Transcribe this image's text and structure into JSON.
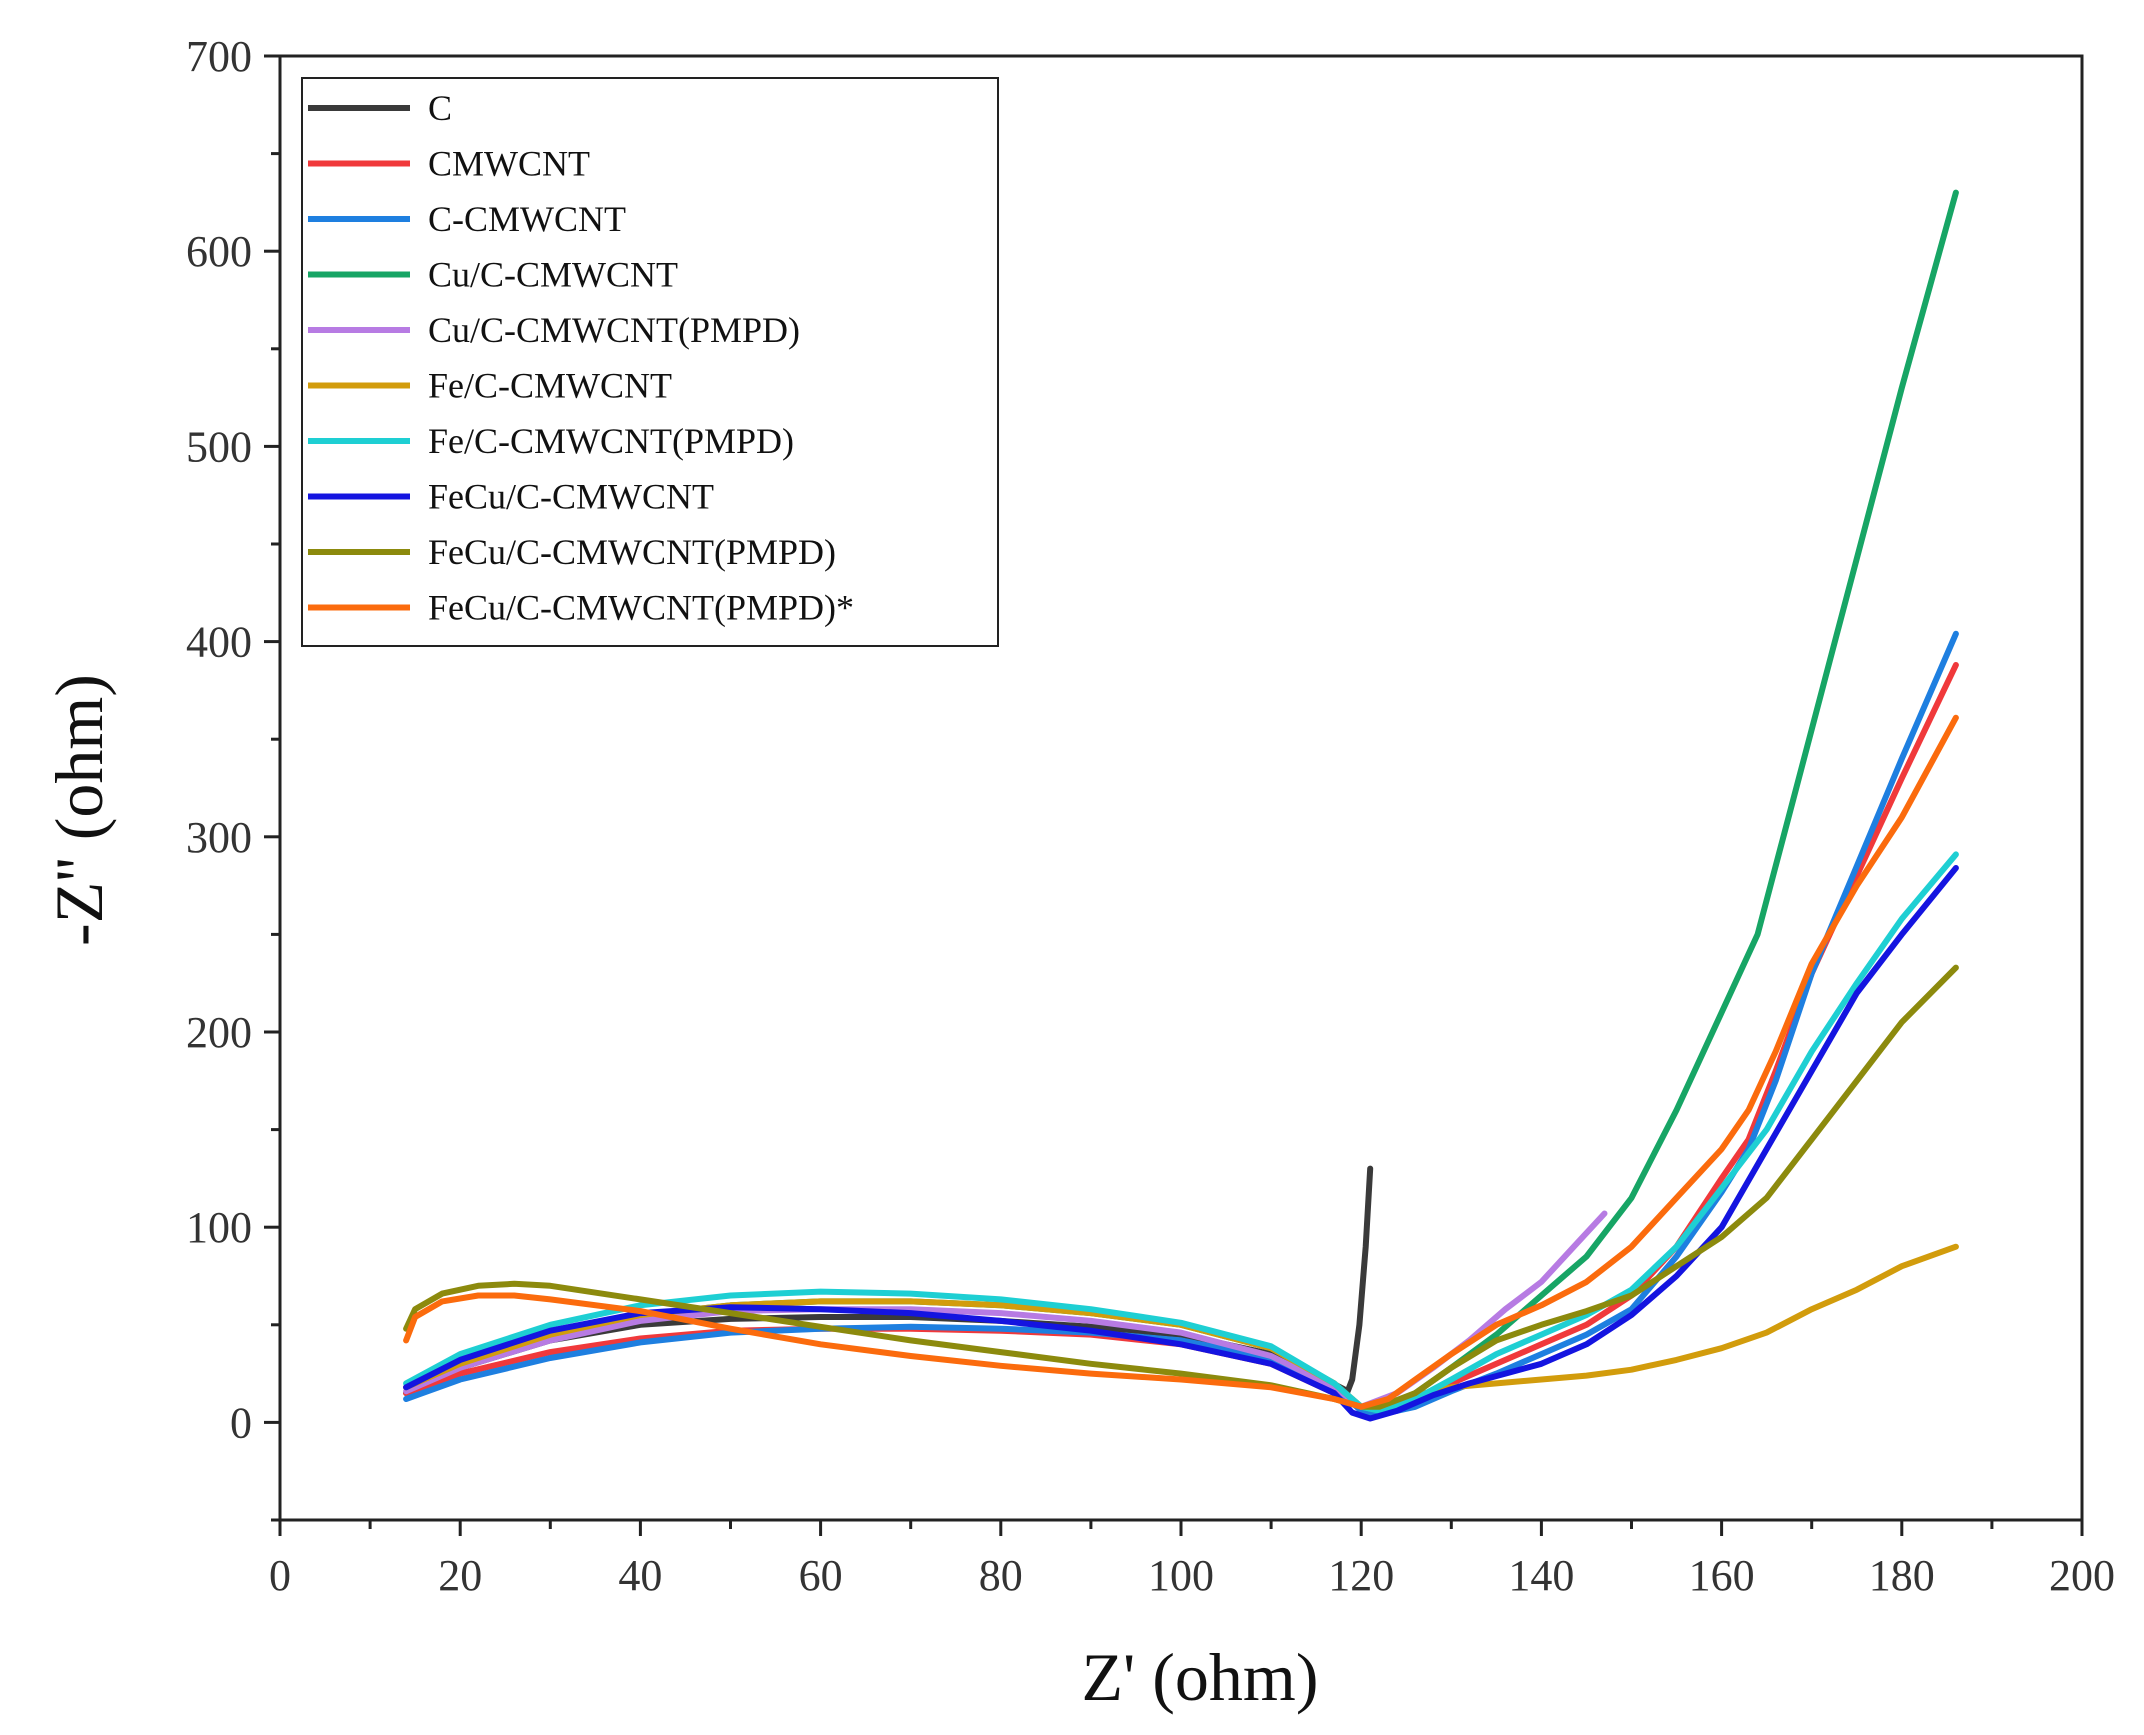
{
  "chart_data": {
    "type": "line",
    "xlabel": "Z' (ohm)",
    "ylabel": "-Z'' (ohm)",
    "xlim": [
      0,
      200
    ],
    "ylim": [
      -50,
      700
    ],
    "x_ticks": [
      0,
      20,
      40,
      60,
      80,
      100,
      120,
      140,
      160,
      180,
      200
    ],
    "y_ticks": [
      0,
      100,
      200,
      300,
      400,
      500,
      600,
      700
    ],
    "grid": false,
    "legend_position": "top-left",
    "series": [
      {
        "name": "C",
        "color": "#3a3a3a",
        "x": [
          14,
          20,
          30,
          40,
          50,
          60,
          70,
          80,
          90,
          100,
          110,
          116,
          118.5,
          119,
          119.8,
          120.5,
          121
        ],
        "y": [
          15,
          28,
          42,
          50,
          53,
          54,
          54,
          52,
          49,
          45,
          35,
          22,
          16,
          22,
          50,
          90,
          130
        ]
      },
      {
        "name": "CMWCNT",
        "color": "#f0393b",
        "x": [
          14,
          20,
          30,
          40,
          50,
          60,
          70,
          80,
          90,
          100,
          110,
          117,
          120,
          122,
          126,
          130,
          135,
          140,
          145,
          150,
          155,
          160,
          163,
          166,
          170,
          175,
          180,
          186
        ],
        "y": [
          15,
          25,
          36,
          43,
          47,
          48,
          48,
          47,
          45,
          40,
          30,
          15,
          7,
          5,
          10,
          20,
          30,
          40,
          50,
          65,
          90,
          125,
          145,
          180,
          230,
          280,
          330,
          388
        ]
      },
      {
        "name": "C-CMWCNT",
        "color": "#1e7fe0",
        "x": [
          14,
          20,
          30,
          40,
          50,
          60,
          70,
          80,
          90,
          100,
          110,
          117,
          120,
          122,
          126,
          130,
          135,
          140,
          145,
          150,
          155,
          160,
          163,
          166,
          170,
          175,
          180,
          186
        ],
        "y": [
          12,
          22,
          33,
          41,
          46,
          48,
          49,
          48,
          46,
          42,
          33,
          18,
          6,
          4,
          8,
          16,
          25,
          35,
          45,
          58,
          85,
          118,
          140,
          175,
          230,
          285,
          340,
          404
        ]
      },
      {
        "name": "Cu/C-CMWCNT",
        "color": "#17a565",
        "x": [
          14,
          20,
          30,
          40,
          50,
          60,
          70,
          80,
          90,
          100,
          110,
          117,
          120,
          122,
          126,
          130,
          135,
          140,
          145,
          150,
          155,
          160,
          164,
          168,
          172,
          176,
          180,
          186
        ],
        "y": [
          18,
          30,
          45,
          55,
          60,
          62,
          62,
          60,
          56,
          50,
          38,
          20,
          8,
          6,
          15,
          28,
          45,
          65,
          85,
          115,
          160,
          210,
          250,
          320,
          390,
          460,
          530,
          630
        ]
      },
      {
        "name": "Cu/C-CMWCNT(PMPD)",
        "color": "#b77be3",
        "x": [
          14,
          20,
          30,
          40,
          50,
          60,
          70,
          80,
          90,
          100,
          110,
          117,
          120,
          124,
          128,
          132,
          136,
          140,
          144,
          147
        ],
        "y": [
          16,
          28,
          42,
          52,
          57,
          58,
          58,
          56,
          52,
          46,
          34,
          18,
          8,
          15,
          28,
          42,
          58,
          72,
          92,
          107
        ]
      },
      {
        "name": "Fe/C-CMWCNT",
        "color": "#d29c0c",
        "x": [
          14,
          20,
          30,
          40,
          50,
          60,
          70,
          80,
          90,
          100,
          110,
          117,
          120,
          123,
          126,
          130,
          135,
          140,
          145,
          150,
          155,
          160,
          165,
          170,
          175,
          180,
          186
        ],
        "y": [
          18,
          30,
          45,
          55,
          60,
          62,
          62,
          60,
          56,
          50,
          38,
          20,
          8,
          10,
          14,
          18,
          20,
          22,
          24,
          27,
          32,
          38,
          46,
          58,
          68,
          80,
          90
        ]
      },
      {
        "name": "Fe/C-CMWCNT(PMPD)",
        "color": "#1ecfd3",
        "x": [
          14,
          20,
          30,
          40,
          50,
          60,
          70,
          80,
          90,
          100,
          110,
          117,
          120,
          122,
          126,
          130,
          135,
          140,
          145,
          150,
          155,
          160,
          165,
          170,
          175,
          180,
          186
        ],
        "y": [
          20,
          35,
          50,
          60,
          65,
          67,
          66,
          63,
          58,
          51,
          39,
          20,
          8,
          6,
          12,
          22,
          35,
          45,
          55,
          68,
          90,
          120,
          150,
          190,
          225,
          258,
          291
        ]
      },
      {
        "name": "FeCu/C-CMWCNT",
        "color": "#1414e0",
        "x": [
          14,
          20,
          30,
          40,
          50,
          60,
          70,
          80,
          90,
          100,
          110,
          117,
          119,
          121,
          124,
          128,
          132,
          136,
          140,
          145,
          150,
          155,
          160,
          165,
          170,
          175,
          180,
          186
        ],
        "y": [
          18,
          32,
          47,
          56,
          59,
          58,
          56,
          52,
          47,
          40,
          30,
          15,
          5,
          2,
          6,
          14,
          20,
          25,
          30,
          40,
          55,
          75,
          100,
          140,
          180,
          220,
          250,
          284
        ]
      },
      {
        "name": "FeCu/C-CMWCNT(PMPD)",
        "color": "#8c8a0d",
        "x": [
          14,
          15,
          18,
          22,
          26,
          30,
          40,
          50,
          60,
          70,
          80,
          90,
          100,
          110,
          117,
          120,
          122,
          126,
          130,
          135,
          140,
          145,
          150,
          155,
          160,
          165,
          170,
          175,
          180,
          186
        ],
        "y": [
          48,
          58,
          66,
          70,
          71,
          70,
          63,
          56,
          49,
          42,
          36,
          30,
          25,
          19,
          12,
          8,
          8,
          15,
          28,
          42,
          50,
          57,
          65,
          80,
          95,
          115,
          145,
          175,
          205,
          233
        ]
      },
      {
        "name": "FeCu/C-CMWCNT(PMPD)*",
        "color": "#fb6b0d",
        "x": [
          14,
          15,
          18,
          22,
          26,
          30,
          40,
          50,
          60,
          70,
          80,
          90,
          100,
          110,
          117,
          120,
          123,
          126,
          130,
          135,
          140,
          145,
          150,
          155,
          160,
          163,
          166,
          170,
          175,
          180,
          186
        ],
        "y": [
          42,
          54,
          62,
          65,
          65,
          63,
          57,
          48,
          40,
          34,
          29,
          25,
          22,
          18,
          12,
          8,
          12,
          22,
          35,
          50,
          60,
          72,
          90,
          115,
          140,
          160,
          190,
          235,
          275,
          310,
          361
        ]
      }
    ]
  }
}
